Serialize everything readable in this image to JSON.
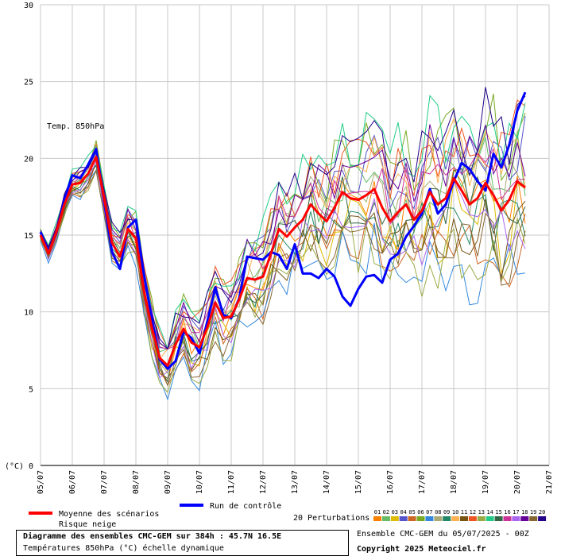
{
  "chart_data": {
    "type": "line",
    "inline_label": "Temp. 850hPa",
    "ylabel": "(°C)",
    "ylim": [
      0,
      30
    ],
    "yticks": [
      0,
      5,
      10,
      15,
      20,
      25,
      30
    ],
    "x_tick_labels": [
      "05/07",
      "06/07",
      "07/07",
      "08/07",
      "09/07",
      "10/07",
      "11/07",
      "12/07",
      "13/07",
      "14/07",
      "15/07",
      "16/07",
      "17/07",
      "18/07",
      "19/07",
      "20/07",
      "21/07"
    ],
    "steps_per_day": 4,
    "mean_series": {
      "name": "Moyenne des scénarios",
      "color": "#ff0000",
      "values": [
        15.0,
        13.8,
        15.2,
        17.0,
        18.3,
        18.4,
        19.0,
        20.1,
        17.4,
        14.5,
        13.6,
        15.4,
        14.8,
        11.4,
        9.0,
        7.0,
        6.5,
        7.9,
        8.9,
        8.0,
        7.7,
        9.0,
        10.6,
        9.6,
        9.7,
        10.8,
        12.2,
        12.1,
        12.3,
        13.8,
        15.4,
        14.9,
        15.5,
        16.0,
        17.0,
        16.4,
        15.9,
        16.8,
        17.8,
        17.4,
        17.3,
        17.6,
        18.0,
        16.8,
        15.9,
        16.5,
        17.0,
        16.0,
        16.6,
        17.8,
        17.0,
        17.4,
        18.7,
        17.9,
        17.0,
        17.4,
        18.4,
        17.6,
        16.6,
        17.3,
        18.5,
        18.1
      ]
    },
    "control_series": {
      "name": "Run de contrôle",
      "color": "#0000ff",
      "values": [
        15.2,
        13.9,
        15.1,
        17.3,
        18.9,
        18.7,
        19.6,
        20.6,
        17.2,
        13.9,
        12.8,
        15.5,
        16.0,
        12.5,
        9.6,
        6.9,
        6.3,
        6.8,
        8.7,
        8.3,
        7.3,
        9.4,
        11.6,
        9.8,
        9.6,
        10.9,
        13.6,
        13.5,
        13.4,
        13.9,
        13.7,
        12.8,
        14.4,
        12.5,
        12.5,
        12.2,
        12.8,
        12.3,
        11.0,
        10.4,
        11.5,
        12.3,
        12.4,
        11.9,
        13.4,
        13.8,
        14.9,
        15.6,
        16.4,
        18.0,
        16.4,
        17.0,
        18.5,
        19.7,
        19.3,
        18.5,
        17.9,
        20.3,
        19.4,
        20.9,
        23.1,
        24.3
      ]
    },
    "perturbations": {
      "legend_label": "20 Perturbations",
      "names": [
        "01",
        "02",
        "03",
        "04",
        "05",
        "06",
        "07",
        "08",
        "09",
        "10",
        "11",
        "12",
        "13",
        "14",
        "15",
        "16",
        "17",
        "18",
        "19",
        "20"
      ],
      "colors": [
        "#ff8000",
        "#66bb66",
        "#ddbb00",
        "#5555cc",
        "#cc6622",
        "#77aa22",
        "#3388dd",
        "#aaaa77",
        "#228866",
        "#ffb050",
        "#775511",
        "#ee5522",
        "#99aa44",
        "#22cc88",
        "#336644",
        "#cc3399",
        "#aa66ee",
        "#660099",
        "#886633",
        "#220088"
      ]
    },
    "snow_risk_label": "Risque neige",
    "grid": true
  },
  "footer": {
    "title_line": "Diagramme des ensembles CMC-GEM sur 384h : 45.7N 16.5E",
    "subtitle_line": "Températures 850hPa (°C) échelle dynamique",
    "run_info": "Ensemble CMC-GEM du 05/07/2025 - 00Z",
    "copyright": "Copyright 2025 Meteociel.fr"
  }
}
